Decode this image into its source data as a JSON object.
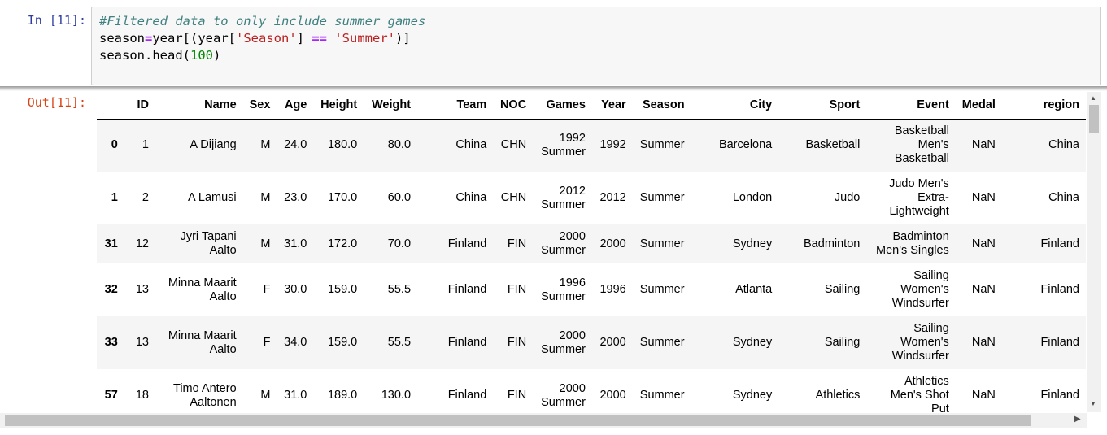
{
  "input_cell": {
    "prompt": "In [11]:",
    "comment": "#Filtered data to only include summer games",
    "line2": {
      "a": "season",
      "b": "=",
      "c": "year[(year[",
      "d": "'Season'",
      "e": "] ",
      "f": "==",
      "g": " ",
      "h": "'Summer'",
      "i": ")]"
    },
    "line3": {
      "a": "season.head(",
      "b": "100",
      "c": ")"
    }
  },
  "output_cell": {
    "prompt": "Out[11]:",
    "columns": [
      "",
      "ID",
      "Name",
      "Sex",
      "Age",
      "Height",
      "Weight",
      "Team",
      "NOC",
      "Games",
      "Year",
      "Season",
      "City",
      "Sport",
      "Event",
      "Medal",
      "region"
    ],
    "rows": [
      [
        "0",
        "1",
        "A Dijiang",
        "M",
        "24.0",
        "180.0",
        "80.0",
        "China",
        "CHN",
        "1992 Summer",
        "1992",
        "Summer",
        "Barcelona",
        "Basketball",
        "Basketball Men's Basketball",
        "NaN",
        "China"
      ],
      [
        "1",
        "2",
        "A Lamusi",
        "M",
        "23.0",
        "170.0",
        "60.0",
        "China",
        "CHN",
        "2012 Summer",
        "2012",
        "Summer",
        "London",
        "Judo",
        "Judo Men's Extra-Lightweight",
        "NaN",
        "China"
      ],
      [
        "31",
        "12",
        "Jyri Tapani Aalto",
        "M",
        "31.0",
        "172.0",
        "70.0",
        "Finland",
        "FIN",
        "2000 Summer",
        "2000",
        "Summer",
        "Sydney",
        "Badminton",
        "Badminton Men's Singles",
        "NaN",
        "Finland"
      ],
      [
        "32",
        "13",
        "Minna Maarit Aalto",
        "F",
        "30.0",
        "159.0",
        "55.5",
        "Finland",
        "FIN",
        "1996 Summer",
        "1996",
        "Summer",
        "Atlanta",
        "Sailing",
        "Sailing Women's Windsurfer",
        "NaN",
        "Finland"
      ],
      [
        "33",
        "13",
        "Minna Maarit Aalto",
        "F",
        "34.0",
        "159.0",
        "55.5",
        "Finland",
        "FIN",
        "2000 Summer",
        "2000",
        "Summer",
        "Sydney",
        "Sailing",
        "Sailing Women's Windsurfer",
        "NaN",
        "Finland"
      ],
      [
        "57",
        "18",
        "Timo Antero Aaltonen",
        "M",
        "31.0",
        "189.0",
        "130.0",
        "Finland",
        "FIN",
        "2000 Summer",
        "2000",
        "Summer",
        "Sydney",
        "Athletics",
        "Athletics Men's Shot Put",
        "NaN",
        "Finland"
      ]
    ]
  },
  "icons": {
    "scroll_up": "arrow-up-icon",
    "scroll_down": "arrow-down-icon",
    "scroll_right": "arrow-right-icon"
  },
  "colors": {
    "in_prompt": "#303f9f",
    "out_prompt": "#d84315",
    "comment": "#408080",
    "string": "#ba2121",
    "operator": "#aa22ff",
    "number": "#008800"
  }
}
